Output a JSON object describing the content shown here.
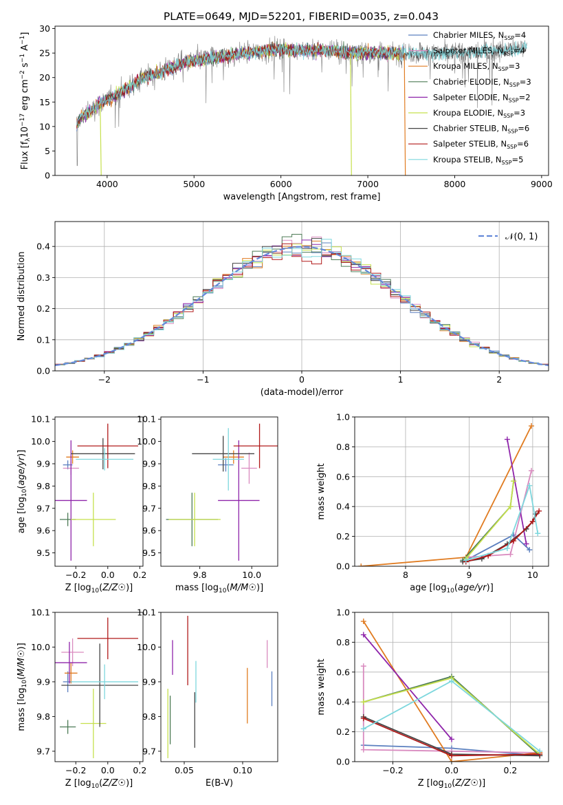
{
  "figure": {
    "title": "PLATE=0649, MJD=52201, FIBERID=0035, z=0.043",
    "colors": {
      "chabrier_miles": "#5B7FBF",
      "salpeter_miles": "#D98ABF",
      "kroupa_miles": "#E07B20",
      "chabrier_elodie": "#4C7A55",
      "salpeter_elodie": "#8E24AA",
      "kroupa_elodie": "#C5E04C",
      "chabrier_stelib": "#444444",
      "salpeter_stelib": "#B01818",
      "kroupa_stelib": "#7DD7DD",
      "normal_curve": "#6488D8"
    }
  },
  "chart_data": [
    {
      "id": "spectrum",
      "type": "line",
      "xlabel": "wavelength [Angstrom, rest frame]",
      "ylabel": "Flux [f_λ10^-17 erg cm^-2 s^-1 A^-1]",
      "xlim": [
        3400,
        9080
      ],
      "ylim": [
        0,
        30.5
      ],
      "xticks": [
        4000,
        5000,
        6000,
        7000,
        8000,
        9000
      ],
      "yticks": [
        0,
        5,
        10,
        15,
        20,
        25,
        30
      ],
      "grid": false,
      "legend_position": "top-right",
      "legend": [
        {
          "label": "Chabrier MILES, N_SSP=4",
          "color_key": "chabrier_miles"
        },
        {
          "label": "Salpeter MILES, N_SSP=4",
          "color_key": "salpeter_miles"
        },
        {
          "label": "Kroupa MILES, N_SSP=3",
          "color_key": "kroupa_miles"
        },
        {
          "label": "Chabrier ELODIE, N_SSP=3",
          "color_key": "chabrier_elodie"
        },
        {
          "label": "Salpeter ELODIE, N_SSP=2",
          "color_key": "salpeter_elodie"
        },
        {
          "label": "Kroupa ELODIE, N_SSP=3",
          "color_key": "kroupa_elodie"
        },
        {
          "label": "Chabrier STELIB, N_SSP=6",
          "color_key": "chabrier_stelib"
        },
        {
          "label": "Salpeter STELIB, N_SSP=6",
          "color_key": "salpeter_stelib"
        },
        {
          "label": "Kroupa STELIB, N_SSP=5",
          "color_key": "kroupa_stelib"
        }
      ],
      "continuum": {
        "x": [
          3650,
          3700,
          3800,
          3900,
          4000,
          4100,
          4200,
          4300,
          4400,
          4600,
          4800,
          5000,
          5200,
          5400,
          5600,
          5800,
          6000,
          6200,
          6400,
          6600,
          6800,
          7000,
          7200,
          7400,
          7600,
          7800,
          8000,
          8200,
          8400,
          8600,
          8800
        ],
        "y": [
          10.5,
          12,
          13,
          14.5,
          15.5,
          16.5,
          17.5,
          18.5,
          20,
          21,
          22.5,
          23.5,
          24,
          24.5,
          25,
          25.5,
          25.8,
          25.5,
          25.5,
          25.6,
          25,
          25.2,
          25,
          25,
          25,
          24.8,
          25,
          25.2,
          25.4,
          25.7,
          26
        ]
      },
      "model_end_wavelength": 7410,
      "drops": [
        {
          "series_key": "kroupa_elodie",
          "x": 3920
        },
        {
          "series_key": "kroupa_elodie",
          "x": 6800
        },
        {
          "series_key": "kroupa_miles",
          "x": 7420
        }
      ]
    },
    {
      "id": "residuals",
      "type": "histogram",
      "xlabel": "(data-model)/error",
      "ylabel": "Normed distribution",
      "xlim": [
        -2.5,
        2.5
      ],
      "ylim": [
        0,
        0.48
      ],
      "xticks": [
        -2,
        -1,
        0,
        1,
        2
      ],
      "yticks": [
        0.0,
        0.1,
        0.2,
        0.3,
        0.4
      ],
      "grid": true,
      "legend_position": "top-right",
      "legend": [
        {
          "label": "𝒩(0, 1)",
          "color_key": "normal_curve",
          "dashed": true
        }
      ],
      "bin_width": 0.1,
      "curve": "normal(0,1)"
    },
    {
      "id": "age_vs_Z",
      "type": "errorbar",
      "xlabel": "Z [log10(Z/Z☉)]",
      "ylabel": "age [log10(age/yr)]",
      "xlim": [
        -0.33,
        0.22
      ],
      "ylim": [
        9.44,
        10.11
      ],
      "xticks": [
        -0.2,
        0.0,
        0.2
      ],
      "xticklabels": [
        "−0.2",
        "0.0",
        "0.2"
      ],
      "yticks": [
        9.5,
        9.6,
        9.7,
        9.8,
        9.9,
        10.0,
        10.1
      ],
      "grid": false,
      "points": [
        {
          "key": "chabrier_miles",
          "x": -0.25,
          "xerr": 0.03,
          "y": 9.895,
          "yerr": 0.02
        },
        {
          "key": "salpeter_miles",
          "x": -0.23,
          "xerr": 0.05,
          "y": 9.88,
          "yerr": 0.03
        },
        {
          "key": "kroupa_miles",
          "x": -0.22,
          "xerr": 0.04,
          "y": 9.93,
          "yerr": 0.03
        },
        {
          "key": "chabrier_elodie",
          "x": -0.25,
          "xerr": 0.05,
          "y": 9.65,
          "yerr": 0.03
        },
        {
          "key": "salpeter_elodie",
          "x": -0.23,
          "xerr": 0.1,
          "y": 9.735,
          "yerr": 0.27
        },
        {
          "key": "kroupa_elodie",
          "x": -0.09,
          "xerr": 0.14,
          "y": 9.65,
          "yerr": 0.12
        },
        {
          "key": "chabrier_stelib",
          "x": -0.03,
          "xerr": 0.2,
          "y": 9.945,
          "yerr": 0.07
        },
        {
          "key": "salpeter_stelib",
          "x": 0.0,
          "xerr": 0.19,
          "y": 9.98,
          "yerr": 0.1
        },
        {
          "key": "kroupa_stelib",
          "x": -0.02,
          "xerr": 0.18,
          "y": 9.92,
          "yerr": 0.05
        }
      ]
    },
    {
      "id": "age_vs_mass",
      "type": "errorbar",
      "xlabel": "mass [log10(M/M☉)]",
      "ylabel": "",
      "xlim": [
        9.65,
        10.1
      ],
      "ylim": [
        9.44,
        10.11
      ],
      "xticks": [
        9.8,
        10.0
      ],
      "xticklabels": [
        "9.8",
        "10.0"
      ],
      "yticks": [
        9.5,
        9.6,
        9.7,
        9.8,
        9.9,
        10.0,
        10.1
      ],
      "grid": false,
      "points": [
        {
          "key": "chabrier_miles",
          "x": 9.9,
          "xerr": 0.03,
          "y": 9.895,
          "yerr": 0.03
        },
        {
          "key": "salpeter_miles",
          "x": 9.99,
          "xerr": 0.03,
          "y": 9.88,
          "yerr": 0.07
        },
        {
          "key": "kroupa_miles",
          "x": 9.93,
          "xerr": 0.04,
          "y": 9.93,
          "yerr": 0.03
        },
        {
          "key": "chabrier_elodie",
          "x": 9.77,
          "xerr": 0.1,
          "y": 9.65,
          "yerr": 0.12
        },
        {
          "key": "salpeter_elodie",
          "x": 9.95,
          "xerr": 0.08,
          "y": 9.735,
          "yerr": 0.27
        },
        {
          "key": "kroupa_elodie",
          "x": 9.78,
          "xerr": 0.1,
          "y": 9.65,
          "yerr": 0.12
        },
        {
          "key": "chabrier_stelib",
          "x": 9.89,
          "xerr": 0.12,
          "y": 9.945,
          "yerr": 0.08
        },
        {
          "key": "salpeter_stelib",
          "x": 10.03,
          "xerr": 0.1,
          "y": 9.98,
          "yerr": 0.1
        },
        {
          "key": "kroupa_stelib",
          "x": 9.91,
          "xerr": 0.06,
          "y": 9.92,
          "yerr": 0.14
        }
      ]
    },
    {
      "id": "weight_vs_age",
      "type": "line",
      "xlabel": "age [log10(age/yr)]",
      "ylabel": "mass weight",
      "xlim": [
        7.2,
        10.25
      ],
      "ylim": [
        0,
        1.0
      ],
      "xticks": [
        8,
        9,
        10
      ],
      "xticklabels": [
        "8",
        "9",
        "10"
      ],
      "yticks": [
        0.0,
        0.2,
        0.4,
        0.6,
        0.8,
        1.0
      ],
      "grid": true,
      "series": [
        {
          "key": "chabrier_miles",
          "x": [
            8.95,
            9.7,
            9.95
          ],
          "y": [
            0.04,
            0.21,
            0.11
          ]
        },
        {
          "key": "salpeter_miles",
          "x": [
            8.95,
            9.65,
            9.98
          ],
          "y": [
            0.06,
            0.08,
            0.64
          ]
        },
        {
          "key": "kroupa_miles",
          "x": [
            7.3,
            8.95,
            9.98
          ],
          "y": [
            0.0,
            0.06,
            0.94
          ]
        },
        {
          "key": "chabrier_elodie",
          "x": [
            8.9,
            9.65,
            9.7
          ],
          "y": [
            0.04,
            0.4,
            0.57
          ]
        },
        {
          "key": "salpeter_elodie",
          "x": [
            9.6,
            9.9
          ],
          "y": [
            0.85,
            0.15
          ]
        },
        {
          "key": "kroupa_elodie",
          "x": [
            8.95,
            9.65,
            9.7
          ],
          "y": [
            0.05,
            0.4,
            0.57
          ]
        },
        {
          "key": "chabrier_stelib",
          "x": [
            8.9,
            9.2,
            9.6,
            9.9,
            10.0,
            10.05
          ],
          "y": [
            0.03,
            0.05,
            0.15,
            0.25,
            0.3,
            0.35
          ]
        },
        {
          "key": "salpeter_stelib",
          "x": [
            8.95,
            9.3,
            9.7,
            10.0,
            10.1
          ],
          "y": [
            0.03,
            0.07,
            0.17,
            0.3,
            0.37
          ]
        },
        {
          "key": "kroupa_stelib",
          "x": [
            8.95,
            9.6,
            9.95,
            10.08
          ],
          "y": [
            0.04,
            0.12,
            0.54,
            0.22
          ]
        }
      ]
    },
    {
      "id": "mass_vs_Z",
      "type": "errorbar",
      "xlabel": "Z [log10(Z/Z☉)]",
      "ylabel": "mass [log10(M/M☉)]",
      "xlim": [
        -0.33,
        0.22
      ],
      "ylim": [
        9.67,
        10.1
      ],
      "xticks": [
        -0.2,
        0.0,
        0.2
      ],
      "xticklabels": [
        "−0.2",
        "0.0",
        "0.2"
      ],
      "yticks": [
        9.7,
        9.8,
        9.9,
        10.0,
        10.1
      ],
      "grid": false,
      "points": [
        {
          "key": "chabrier_miles",
          "x": -0.25,
          "xerr": 0.03,
          "y": 9.9,
          "yerr": 0.03
        },
        {
          "key": "salpeter_miles",
          "x": -0.22,
          "xerr": 0.07,
          "y": 9.985,
          "yerr": 0.04
        },
        {
          "key": "kroupa_miles",
          "x": -0.23,
          "xerr": 0.04,
          "y": 9.925,
          "yerr": 0.03
        },
        {
          "key": "chabrier_elodie",
          "x": -0.25,
          "xerr": 0.05,
          "y": 9.77,
          "yerr": 0.02
        },
        {
          "key": "salpeter_elodie",
          "x": -0.24,
          "xerr": 0.11,
          "y": 9.955,
          "yerr": 0.06
        },
        {
          "key": "kroupa_elodie",
          "x": -0.09,
          "xerr": 0.08,
          "y": 9.78,
          "yerr": 0.1
        },
        {
          "key": "chabrier_stelib",
          "x": -0.05,
          "xerr": 0.24,
          "y": 9.89,
          "yerr": 0.12
        },
        {
          "key": "salpeter_stelib",
          "x": 0.0,
          "xerr": 0.19,
          "y": 10.025,
          "yerr": 0.06
        },
        {
          "key": "kroupa_stelib",
          "x": -0.02,
          "xerr": 0.21,
          "y": 9.9,
          "yerr": 0.05
        }
      ]
    },
    {
      "id": "mass_vs_ebv",
      "type": "errorbar",
      "xlabel": "E(B-V)",
      "ylabel": "",
      "xlim": [
        0.03,
        0.13
      ],
      "ylim": [
        9.67,
        10.1
      ],
      "xticks": [
        0.05,
        0.1
      ],
      "xticklabels": [
        "0.05",
        "0.10"
      ],
      "yticks": [
        9.7,
        9.8,
        9.9,
        10.0,
        10.1
      ],
      "grid": false,
      "points": [
        {
          "key": "chabrier_miles",
          "x": 0.125,
          "y": 9.88,
          "yerr": 0.05
        },
        {
          "key": "salpeter_miles",
          "x": 0.121,
          "y": 9.98,
          "yerr": 0.04
        },
        {
          "key": "kroupa_miles",
          "x": 0.104,
          "y": 9.86,
          "yerr": 0.08
        },
        {
          "key": "chabrier_elodie",
          "x": 0.038,
          "y": 9.79,
          "yerr": 0.07
        },
        {
          "key": "salpeter_elodie",
          "x": 0.04,
          "y": 9.97,
          "yerr": 0.05
        },
        {
          "key": "kroupa_elodie",
          "x": 0.036,
          "y": 9.78,
          "yerr": 0.1
        },
        {
          "key": "chabrier_stelib",
          "x": 0.059,
          "y": 9.79,
          "yerr": 0.08
        },
        {
          "key": "salpeter_stelib",
          "x": 0.053,
          "y": 9.99,
          "yerr": 0.1
        },
        {
          "key": "kroupa_stelib",
          "x": 0.06,
          "y": 9.9,
          "yerr": 0.06
        }
      ]
    },
    {
      "id": "weight_vs_Z",
      "type": "line",
      "xlabel": "Z [log10(Z/Z☉)]",
      "ylabel": "mass weight",
      "xlim": [
        -0.33,
        0.33
      ],
      "ylim": [
        0,
        1.0
      ],
      "xticks": [
        -0.2,
        0.0,
        0.2
      ],
      "xticklabels": [
        "−0.2",
        "0.0",
        "0.2"
      ],
      "yticks": [
        0.0,
        0.2,
        0.4,
        0.6,
        0.8,
        1.0
      ],
      "grid": true,
      "series": [
        {
          "key": "chabrier_miles",
          "x": [
            -0.3,
            0.0,
            0.3
          ],
          "y": [
            0.11,
            0.09,
            0.04
          ]
        },
        {
          "key": "salpeter_miles",
          "x": [
            -0.3,
            -0.3,
            0.0,
            0.3
          ],
          "y": [
            0.64,
            0.08,
            0.07,
            0.06
          ]
        },
        {
          "key": "kroupa_miles",
          "x": [
            -0.3,
            0.0,
            0.3
          ],
          "y": [
            0.94,
            0.0,
            0.06
          ]
        },
        {
          "key": "chabrier_elodie",
          "x": [
            -0.3,
            0.0,
            0.3
          ],
          "y": [
            0.4,
            0.57,
            0.04
          ]
        },
        {
          "key": "salpeter_elodie",
          "x": [
            -0.3,
            0.0
          ],
          "y": [
            0.85,
            0.15
          ]
        },
        {
          "key": "kroupa_elodie",
          "x": [
            -0.3,
            0.0,
            0.3
          ],
          "y": [
            0.4,
            0.56,
            0.05
          ]
        },
        {
          "key": "chabrier_stelib",
          "x": [
            -0.3,
            0.0,
            0.3
          ],
          "y": [
            0.3,
            0.05,
            0.04
          ]
        },
        {
          "key": "salpeter_stelib",
          "x": [
            -0.3,
            0.0,
            0.3
          ],
          "y": [
            0.29,
            0.04,
            0.05
          ]
        },
        {
          "key": "kroupa_stelib",
          "x": [
            -0.3,
            0.0,
            0.3
          ],
          "y": [
            0.22,
            0.54,
            0.07
          ]
        }
      ]
    }
  ]
}
